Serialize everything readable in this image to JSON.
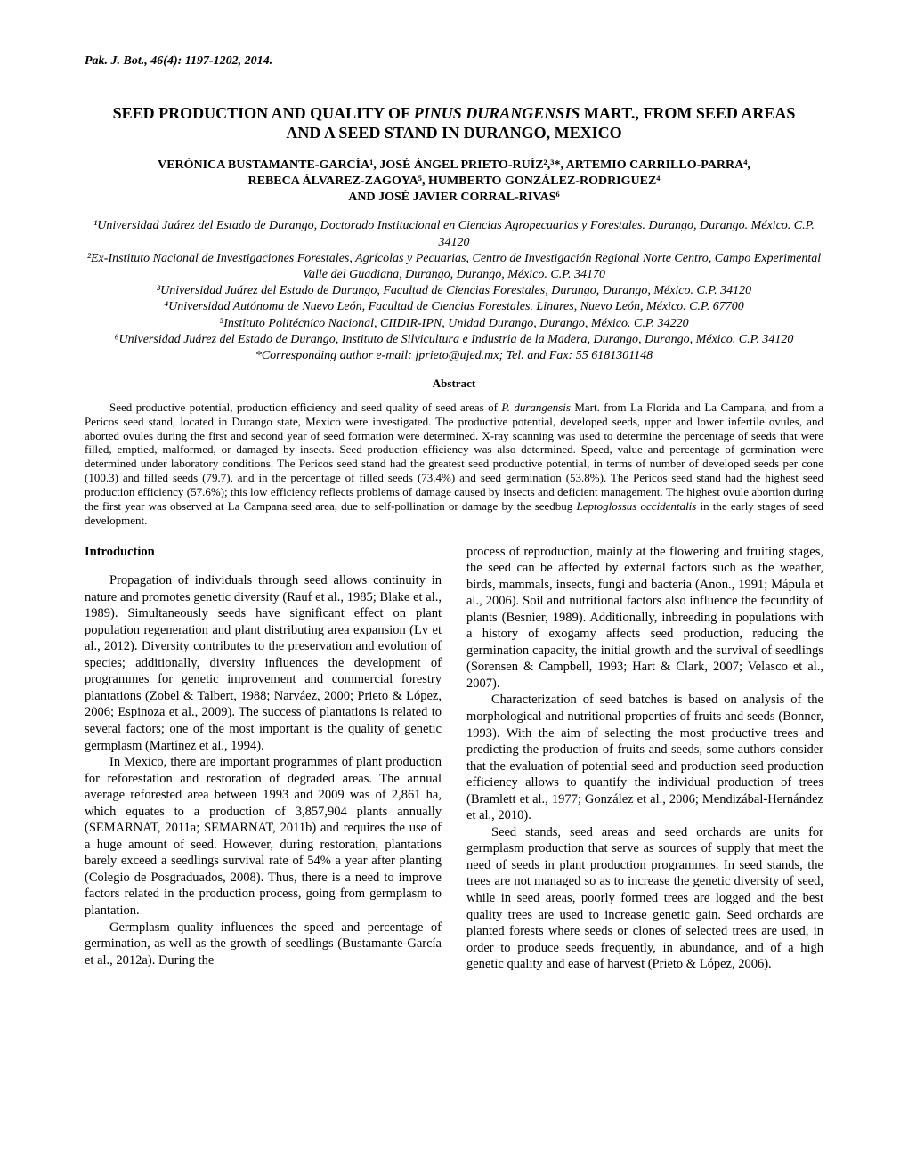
{
  "journal_header": "Pak. J. Bot., 46(4): 1197-1202, 2014.",
  "title_pre": "SEED PRODUCTION AND QUALITY OF ",
  "title_species": "PINUS DURANGENSIS",
  "title_post": " MART., FROM SEED AREAS AND A SEED STAND IN DURANGO, MEXICO",
  "authors_line1": "VERÓNICA BUSTAMANTE-GARCÍA¹, JOSÉ ÁNGEL PRIETO-RUÍZ²,³*, ARTEMIO CARRILLO-PARRA⁴,",
  "authors_line2": "REBECA ÁLVAREZ-ZAGOYA⁵, HUMBERTO GONZÁLEZ-RODRIGUEZ⁴",
  "authors_line3": "AND JOSÉ JAVIER CORRAL-RIVAS⁶",
  "affil1": "¹Universidad Juárez del Estado de Durango, Doctorado Institucional en Ciencias Agropecuarias y Forestales. Durango, Durango. México. C.P. 34120",
  "affil2": "²Ex-Instituto Nacional de Investigaciones Forestales, Agrícolas y Pecuarias, Centro de Investigación Regional Norte Centro, Campo Experimental Valle del Guadiana, Durango, Durango, México. C.P. 34170",
  "affil3": "³Universidad Juárez del Estado de Durango, Facultad de Ciencias Forestales, Durango, Durango, México. C.P. 34120",
  "affil4": "⁴Universidad Autónoma de Nuevo León, Facultad de Ciencias Forestales. Linares, Nuevo León, México. C.P. 67700",
  "affil5": "⁵Instituto Politécnico Nacional, CIIDIR-IPN, Unidad Durango, Durango, México. C.P. 34220",
  "affil6": "⁶Universidad Juárez del Estado de Durango, Instituto de Silvicultura e Industria de la Madera, Durango, Durango, México. C.P. 34120",
  "corresponding": "*Corresponding author e-mail: jprieto@ujed.mx; Tel. and Fax: 55 6181301148",
  "abstract_heading": "Abstract",
  "abstract_text_pre": "Seed productive potential, production efficiency and seed quality of seed areas of ",
  "abstract_species": "P. durangensis",
  "abstract_text_mid": " Mart. from La Florida and La Campana, and from a Pericos seed stand, located in Durango state, Mexico were investigated. The productive potential, developed seeds, upper and lower infertile ovules, and aborted ovules during the first and second year of seed formation were determined. X-ray scanning was used to determine the percentage of seeds that were filled, emptied, malformed, or damaged by insects. Seed production efficiency was also determined. Speed, value and percentage of germination were determined under laboratory conditions. The Pericos seed stand had the greatest seed productive potential, in terms of number of developed seeds per cone (100.3) and filled seeds (79.7), and in the percentage of filled seeds (73.4%) and seed germination (53.8%). The Pericos seed stand had the highest seed production efficiency (57.6%); this low efficiency reflects problems of damage caused by insects and deficient management. The highest ovule abortion during the first year was observed at La Campana seed area, due to self-pollination or damage by the seedbug ",
  "abstract_species2": "Leptoglossus occidentalis",
  "abstract_text_post": " in the early stages of seed development.",
  "intro_heading": "Introduction",
  "col1_p1": "Propagation of individuals through seed allows continuity in nature and promotes genetic diversity (Rauf et al., 1985; Blake et al., 1989). Simultaneously seeds have significant effect on plant population regeneration and plant distributing area expansion (Lv et al., 2012). Diversity contributes to the preservation and evolution of species; additionally, diversity influences the development of programmes for genetic improvement and commercial forestry plantations (Zobel & Talbert, 1988; Narváez, 2000; Prieto & López, 2006; Espinoza et al., 2009). The success of plantations is related to several factors; one of the most important is the quality of genetic germplasm (Martínez et al., 1994).",
  "col1_p2": "In Mexico, there are important programmes of plant production for reforestation and restoration of degraded areas. The annual average reforested area between 1993 and 2009 was of 2,861 ha, which equates to a production of 3,857,904 plants annually (SEMARNAT, 2011a; SEMARNAT, 2011b) and requires the use of a huge amount of seed. However, during restoration, plantations barely exceed a seedlings survival rate of 54% a year after planting (Colegio de Posgraduados, 2008). Thus, there is a need to improve factors related in the production process, going from germplasm to plantation.",
  "col1_p3": "Germplasm quality influences the speed and percentage of germination, as well as the growth of seedlings (Bustamante-García et al., 2012a). During the",
  "col2_p1": "process of reproduction, mainly at the flowering and fruiting stages, the seed can be affected by external factors such as the weather, birds, mammals, insects, fungi and bacteria (Anon., 1991; Mápula et al., 2006). Soil and nutritional factors also influence the fecundity of plants (Besnier, 1989). Additionally, inbreeding in populations with a history of exogamy affects seed production, reducing the germination capacity, the initial growth and the survival of seedlings (Sorensen & Campbell, 1993; Hart & Clark, 2007; Velasco et al., 2007).",
  "col2_p2": "Characterization of seed batches is based on analysis of the morphological and nutritional properties of fruits and seeds (Bonner, 1993). With the aim of selecting the most productive trees and predicting the production of fruits and seeds, some authors consider that the evaluation of potential seed and production seed production efficiency allows to quantify the individual production of trees (Bramlett et al., 1977; González et al., 2006; Mendizábal-Hernández et al., 2010).",
  "col2_p3": "Seed stands, seed areas and seed orchards are units for germplasm production that serve as sources of supply that meet the need of seeds in plant production programmes. In seed stands, the trees are not managed so as to increase the genetic diversity of seed, while in seed areas, poorly formed trees are logged and the best quality trees are used to increase genetic gain. Seed orchards are planted forests where seeds or clones of selected trees are used, in order to produce seeds frequently, in abundance, and of a high genetic quality and ease of harvest (Prieto & López, 2006)."
}
